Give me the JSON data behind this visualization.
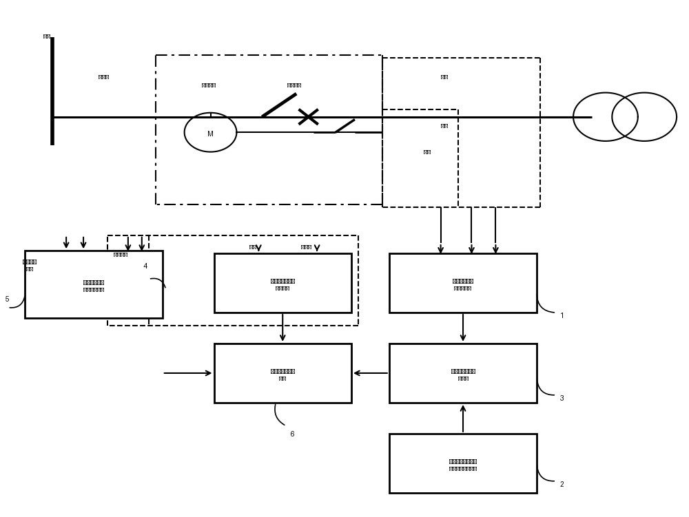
{
  "bg_color": "#ffffff",
  "fig_w": 10.0,
  "fig_h": 7.51,
  "dpi": 100
}
